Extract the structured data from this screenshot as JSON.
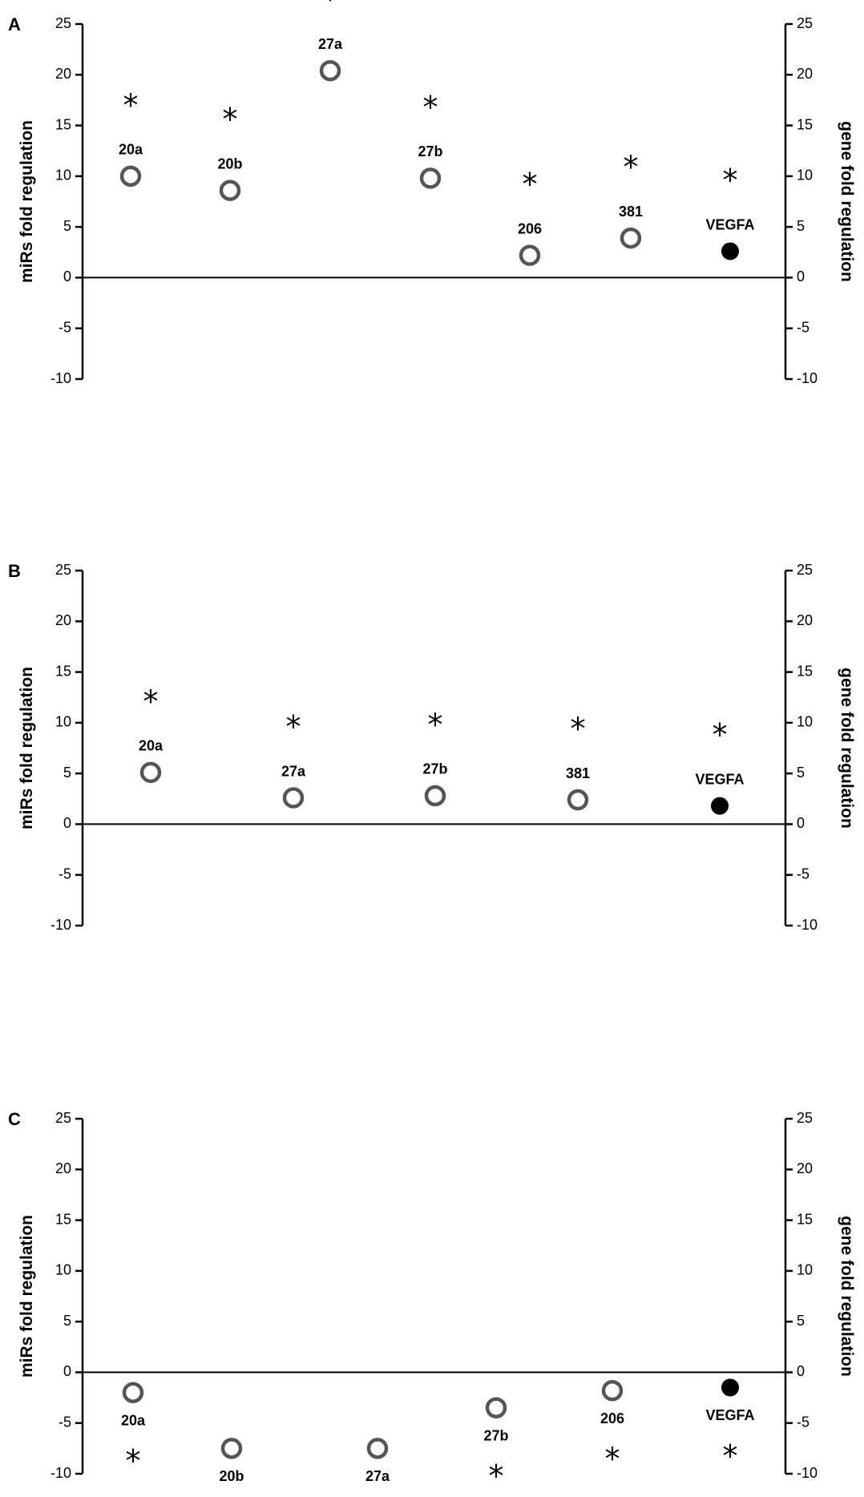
{
  "chart_data": [
    {
      "type": "scatter",
      "panel_label": "A",
      "ylabel_left": "miRs fold regulation",
      "ylabel_right": "gene fold regulation",
      "ylim": [
        -10,
        25
      ],
      "yticks": [
        "25",
        "20",
        "15",
        "10",
        "5",
        "0",
        "-5",
        "-10"
      ],
      "points": [
        {
          "label": "20a",
          "value": 10,
          "type": "miR",
          "significance": "*"
        },
        {
          "label": "20b",
          "value": 8.6,
          "type": "miR",
          "significance": "*"
        },
        {
          "label": "27a",
          "value": 20.4,
          "type": "miR",
          "significance": "*"
        },
        {
          "label": "27b",
          "value": 9.8,
          "type": "miR",
          "significance": "*"
        },
        {
          "label": "206",
          "value": 2.2,
          "type": "miR",
          "significance": "*"
        },
        {
          "label": "381",
          "value": 3.9,
          "type": "miR",
          "significance": "*"
        },
        {
          "label": "VEGFA",
          "value": 2.6,
          "type": "gene",
          "significance": "*"
        }
      ]
    },
    {
      "type": "scatter",
      "panel_label": "B",
      "ylabel_left": "miRs fold regulation",
      "ylabel_right": "gene fold regulation",
      "ylim": [
        -10,
        25
      ],
      "yticks": [
        "25",
        "20",
        "15",
        "10",
        "5",
        "0",
        "-5",
        "-10"
      ],
      "points": [
        {
          "label": "20a",
          "value": 5.1,
          "type": "miR",
          "significance": "*"
        },
        {
          "label": "27a",
          "value": 2.6,
          "type": "miR",
          "significance": "*"
        },
        {
          "label": "27b",
          "value": 2.8,
          "type": "miR",
          "significance": "*"
        },
        {
          "label": "381",
          "value": 2.4,
          "type": "miR",
          "significance": "*"
        },
        {
          "label": "VEGFA",
          "value": 1.8,
          "type": "gene",
          "significance": "*"
        }
      ]
    },
    {
      "type": "scatter",
      "panel_label": "C",
      "ylabel_left": "miRs fold regulation",
      "ylabel_right": "gene fold regulation",
      "ylim": [
        -10,
        25
      ],
      "yticks": [
        "25",
        "20",
        "15",
        "10",
        "5",
        "0",
        "-5",
        "-10"
      ],
      "points": [
        {
          "label": "20a",
          "value": -2,
          "type": "miR",
          "significance": "*"
        },
        {
          "label": "20b",
          "value": -7.5,
          "type": "miR",
          "significance": "*"
        },
        {
          "label": "27a",
          "value": -7.5,
          "type": "miR",
          "significance": "*"
        },
        {
          "label": "27b",
          "value": -3.5,
          "type": "miR",
          "significance": "*"
        },
        {
          "label": "206",
          "value": -1.8,
          "type": "miR",
          "significance": "*"
        },
        {
          "label": "VEGFA",
          "value": -1.5,
          "type": "gene",
          "significance": "*"
        }
      ]
    }
  ]
}
